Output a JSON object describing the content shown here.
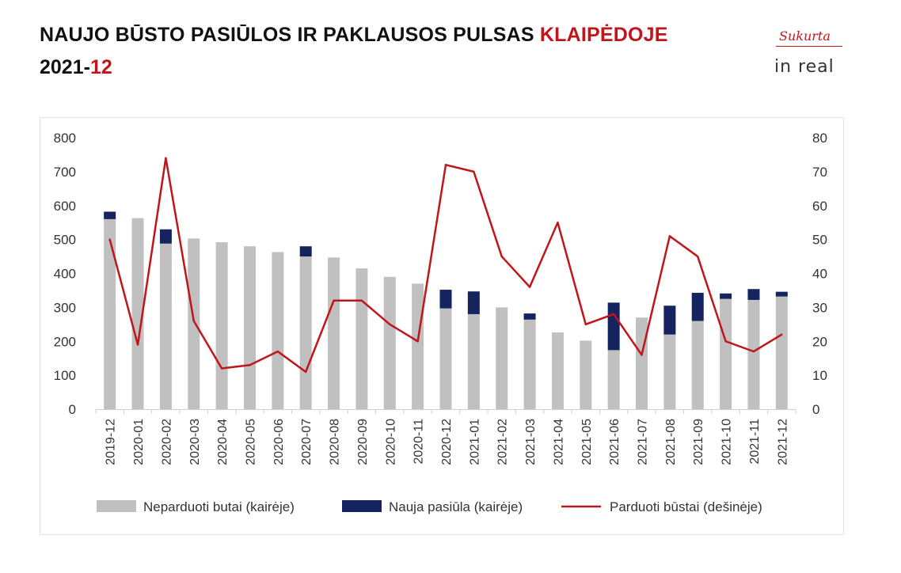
{
  "header": {
    "title_main": "NAUJO BŪSTO PASIŪLOS IR PAKLAUSOS PULSAS ",
    "title_accent": "KLAIPĖDOJE",
    "subtitle_main": "2021-",
    "subtitle_accent": "12"
  },
  "logo": {
    "top_text": "Sukurta",
    "brand_text": "in real"
  },
  "colors": {
    "unsold": "#c0c0c0",
    "new_supply": "#15235e",
    "sold_line": "#c0151b",
    "accent": "#c0151b"
  },
  "chart_data": {
    "type": "bar",
    "categories": [
      "2019-12",
      "2020-01",
      "2020-02",
      "2020-03",
      "2020-04",
      "2020-05",
      "2020-06",
      "2020-07",
      "2020-08",
      "2020-09",
      "2020-10",
      "2020-11",
      "2020-12",
      "2021-01",
      "2021-02",
      "2021-03",
      "2021-04",
      "2021-05",
      "2021-06",
      "2021-07",
      "2021-08",
      "2021-09",
      "2021-10",
      "2021-11",
      "2021-12"
    ],
    "series": [
      {
        "name": "Neparduoti butai (kairėje)",
        "type": "bar",
        "axis": "left",
        "values": [
          560,
          563,
          488,
          503,
          492,
          480,
          463,
          450,
          447,
          415,
          390,
          370,
          297,
          280,
          300,
          264,
          226,
          202,
          174,
          270,
          220,
          260,
          325,
          322,
          332
        ]
      },
      {
        "name": "Nauja pasiūla (kairėje)",
        "type": "bar-stacked",
        "axis": "left",
        "values": [
          22,
          0,
          42,
          0,
          0,
          0,
          0,
          30,
          0,
          0,
          0,
          0,
          55,
          67,
          0,
          18,
          0,
          0,
          140,
          0,
          85,
          83,
          16,
          32,
          14
        ]
      },
      {
        "name": "Parduoti būstai (dešinėje)",
        "type": "line",
        "axis": "right",
        "values": [
          50,
          19,
          74,
          26,
          12,
          13,
          17,
          11,
          32,
          32,
          25,
          20,
          72,
          70,
          45,
          36,
          55,
          25,
          28,
          16,
          51,
          45,
          20,
          17,
          22
        ]
      }
    ],
    "y_left": {
      "min": 0,
      "max": 800,
      "ticks": [
        "0",
        "100",
        "200",
        "300",
        "400",
        "500",
        "600",
        "700",
        "800"
      ]
    },
    "y_right": {
      "min": 0,
      "max": 80,
      "ticks": [
        "0",
        "10",
        "20",
        "30",
        "40",
        "50",
        "60",
        "70",
        "80"
      ]
    },
    "grid": false,
    "legend_position": "bottom"
  }
}
